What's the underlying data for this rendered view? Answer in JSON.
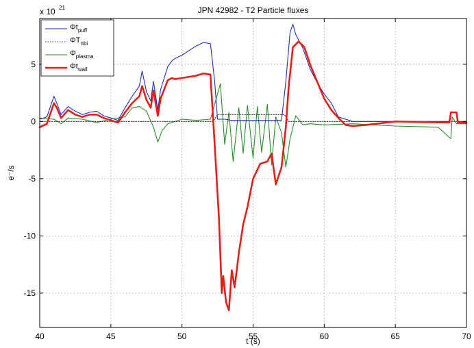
{
  "chart_data": {
    "type": "line",
    "title": "JPN 42982 - T2 Particle fluxes",
    "xlabel": "t (s)",
    "ylabel": "e⁻/s",
    "y_multiplier": "x 10",
    "y_multiplier_exp": "21",
    "xlim": [
      40,
      70
    ],
    "ylim": [
      -18,
      9
    ],
    "x_ticks": [
      40,
      45,
      50,
      55,
      60,
      65,
      70
    ],
    "y_ticks": [
      -15,
      -10,
      -5,
      0,
      5
    ],
    "grid": true,
    "legend_position": "top-left",
    "series": [
      {
        "name": "Φt",
        "name_sub": "puff",
        "color": "#1f2fb0",
        "style": "solid",
        "x": [
          40,
          40.5,
          41,
          41.2,
          41.5,
          42,
          42.5,
          43,
          43.5,
          44,
          44.5,
          45,
          45.5,
          46,
          46.5,
          47,
          47.2,
          47.5,
          47.8,
          48,
          48.3,
          48.5,
          49,
          49.3,
          49.5,
          50,
          50.5,
          51,
          51.5,
          52,
          52.3,
          52.5,
          53,
          53.5,
          54,
          55,
          56,
          57,
          57.3,
          57.6,
          57.8,
          58,
          58.5,
          59,
          59.5,
          60,
          60.5,
          61,
          62,
          65,
          68.8,
          68.9,
          69.3,
          69.4,
          70
        ],
        "y": [
          0.2,
          0.4,
          2.2,
          1.6,
          0.6,
          1.3,
          0.9,
          0.6,
          0.8,
          0.9,
          0.5,
          0.3,
          0.1,
          1.2,
          2.2,
          3.1,
          4.4,
          2.6,
          1.8,
          3.5,
          1.0,
          2.8,
          4.8,
          5.3,
          5.5,
          5.8,
          6.2,
          6.6,
          6.9,
          6.8,
          3.5,
          0.2,
          0.2,
          0.1,
          0.1,
          0.1,
          0.1,
          0.1,
          3.5,
          7.8,
          8.5,
          7.6,
          6.4,
          4.6,
          3.4,
          2.4,
          1.6,
          0.4,
          0.0,
          0.0,
          0.0,
          0.8,
          0.8,
          0.0,
          0.0
        ]
      },
      {
        "name": "ΦT",
        "name_sub": "nbi",
        "color": "#333333",
        "style": "dotted",
        "x": [
          40,
          45,
          46,
          52.2,
          52.5,
          57.2,
          57.5,
          70
        ],
        "y": [
          0.0,
          0.0,
          0.0,
          0.0,
          0.6,
          0.6,
          0.0,
          0.0
        ]
      },
      {
        "name": "Φ",
        "name_sub": "plasma",
        "color": "#2a8a2a",
        "style": "solid",
        "x": [
          40,
          41,
          41.5,
          42,
          43,
          44,
          45,
          46,
          46.5,
          47,
          47.5,
          48,
          48.3,
          48.6,
          49,
          50,
          51,
          52,
          52.3,
          52.7,
          53,
          53.3,
          53.6,
          54,
          54.3,
          54.6,
          55,
          55.3,
          55.6,
          56,
          56.3,
          56.6,
          57,
          57.3,
          57.6,
          58,
          58.5,
          59,
          60,
          62,
          65,
          68,
          68.9,
          69,
          69.3,
          70
        ],
        "y": [
          0.3,
          0.2,
          -0.2,
          0.3,
          0.2,
          -0.1,
          0.2,
          0.4,
          1.2,
          1.3,
          0.9,
          -0.5,
          -1.8,
          -0.8,
          -0.2,
          0.2,
          0.1,
          0.2,
          1.5,
          3.3,
          -2.0,
          0.8,
          -3.5,
          1.2,
          -2.8,
          1.4,
          -3.2,
          1.3,
          -2.7,
          1.5,
          -3.8,
          0.4,
          -1.0,
          -4.0,
          -1.5,
          0.5,
          -0.3,
          -0.2,
          -0.3,
          -0.2,
          -0.4,
          -0.5,
          -1.5,
          0.4,
          -0.2,
          -0.2
        ]
      },
      {
        "name": "Φt",
        "name_sub": "wall",
        "color": "#e0201a",
        "style": "solid-thick",
        "x": [
          40,
          40.5,
          41,
          41.2,
          41.5,
          42,
          42.5,
          43,
          43.5,
          44,
          44.5,
          45,
          45.5,
          46,
          46.5,
          47,
          47.2,
          47.5,
          47.8,
          48,
          48.3,
          48.5,
          49,
          49.3,
          49.5,
          50,
          51,
          51.5,
          52,
          52.3,
          52.6,
          52.8,
          52.9,
          53.1,
          53.3,
          53.5,
          53.7,
          54,
          54.3,
          54.6,
          55,
          55.5,
          56,
          56.3,
          56.6,
          57,
          57.3,
          57.5,
          57.8,
          58.2,
          58.6,
          59,
          59.5,
          60,
          60.5,
          61,
          61.5,
          62,
          63,
          65,
          68.8,
          68.9,
          69.3,
          69.4,
          70
        ],
        "y": [
          -0.5,
          -0.2,
          1.6,
          1.2,
          0.3,
          1.0,
          0.6,
          0.4,
          0.6,
          0.6,
          0.3,
          0.1,
          -0.1,
          0.8,
          1.6,
          2.2,
          3.1,
          1.9,
          1.2,
          2.7,
          0.5,
          2.0,
          3.6,
          3.8,
          3.7,
          3.8,
          4.0,
          4.2,
          4.1,
          -2.0,
          -8.5,
          -15.0,
          -13.5,
          -15.8,
          -16.5,
          -13.0,
          -14.5,
          -11.5,
          -9.0,
          -7.5,
          -5.0,
          -3.7,
          -3.5,
          -2.8,
          -5.5,
          -4.0,
          -0.5,
          3.0,
          6.5,
          7.0,
          6.5,
          5.0,
          3.5,
          2.0,
          1.0,
          0.3,
          -0.3,
          -0.4,
          -0.3,
          0.0,
          -0.1,
          0.8,
          0.8,
          -0.1,
          -0.1
        ]
      }
    ]
  }
}
